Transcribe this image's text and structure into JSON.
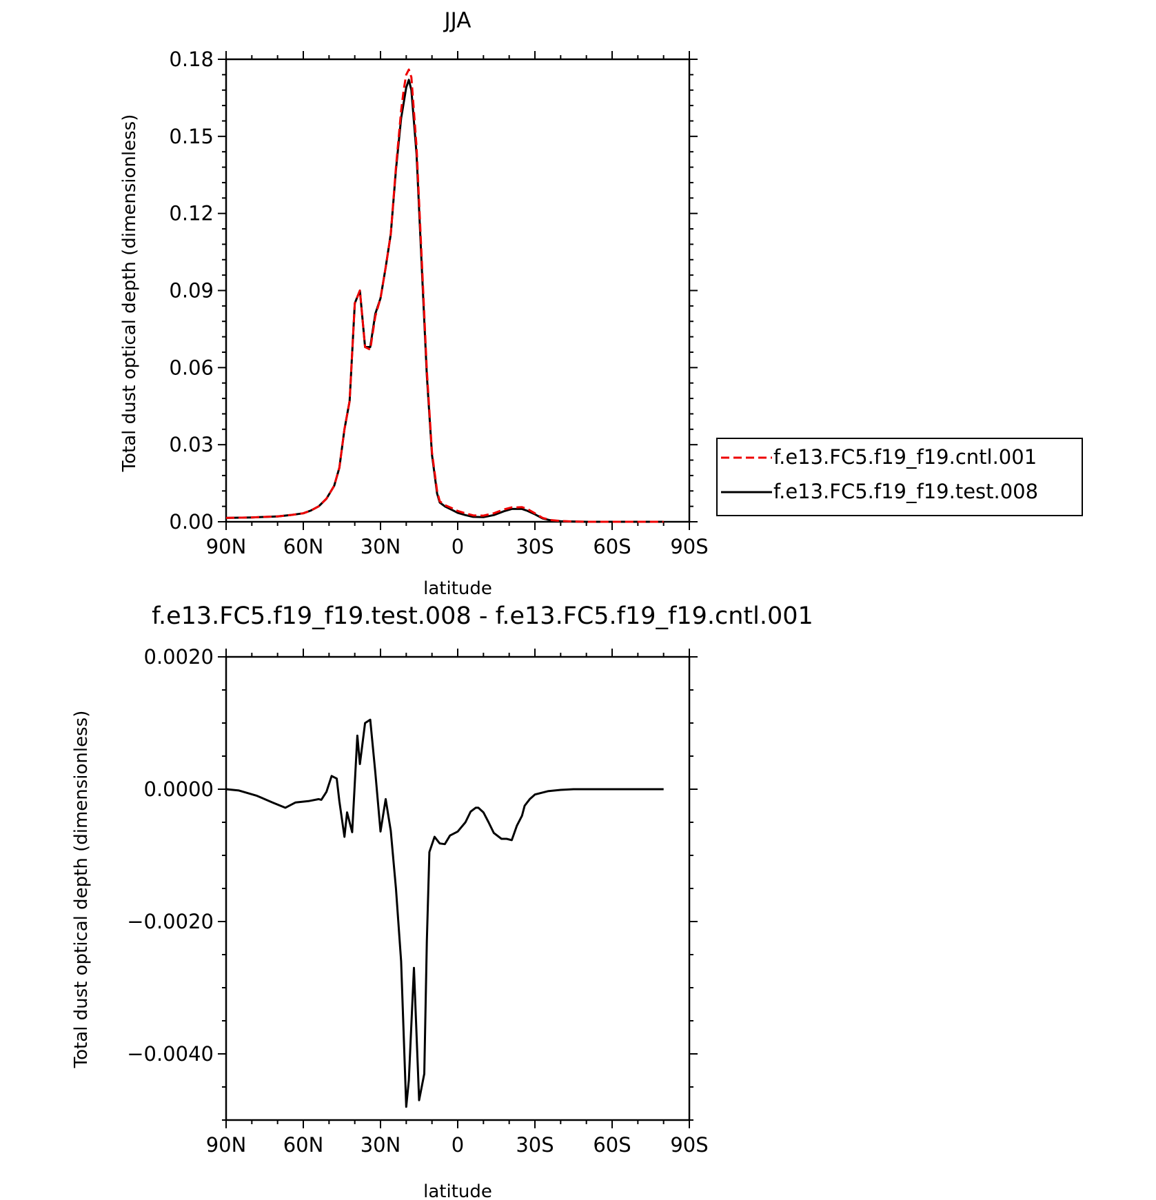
{
  "chart_data": [
    {
      "type": "line",
      "title": "JJA",
      "xlabel": "latitude",
      "ylabel": "Total dust optical depth (dimensionless)",
      "xlim": [
        90,
        -90
      ],
      "ylim": [
        0.0,
        0.18
      ],
      "x_ticks": [
        90,
        60,
        30,
        0,
        -30,
        -60,
        -90
      ],
      "x_tick_labels": [
        "90N",
        "60N",
        "30N",
        "0",
        "30S",
        "60S",
        "90S"
      ],
      "y_ticks": [
        0.0,
        0.03,
        0.06,
        0.09,
        0.12,
        0.15,
        0.18
      ],
      "y_tick_labels": [
        "0.00",
        "0.03",
        "0.06",
        "0.09",
        "0.12",
        "0.15",
        "0.18"
      ],
      "legend_position": "right",
      "series": [
        {
          "name": "f.e13.FC5.f19_f19.cntl.001",
          "color": "#ee0000",
          "dash": "dashed",
          "x": [
            90,
            80,
            70,
            65,
            60,
            57,
            54,
            51,
            48,
            46,
            44,
            42,
            40,
            38,
            36,
            34,
            32,
            30,
            28,
            26,
            24,
            22,
            21,
            20,
            19,
            18,
            16,
            14,
            12,
            10,
            8,
            7,
            5,
            2,
            0,
            -3,
            -6,
            -10,
            -14,
            -18,
            -21,
            -23,
            -25,
            -27,
            -30,
            -33,
            -36,
            -40,
            -45,
            -50,
            -60,
            -70,
            -80
          ],
          "values": [
            0.0015,
            0.0017,
            0.0021,
            0.0026,
            0.0033,
            0.0044,
            0.006,
            0.009,
            0.014,
            0.021,
            0.036,
            0.047,
            0.085,
            0.09,
            0.068,
            0.067,
            0.08,
            0.087,
            0.099,
            0.112,
            0.138,
            0.16,
            0.168,
            0.174,
            0.176,
            0.173,
            0.146,
            0.103,
            0.059,
            0.027,
            0.012,
            0.008,
            0.0065,
            0.0052,
            0.0042,
            0.0033,
            0.0025,
            0.0024,
            0.0033,
            0.0048,
            0.0056,
            0.0056,
            0.0057,
            0.005,
            0.0033,
            0.0015,
            0.0007,
            0.0003,
            0.0001,
            0.0,
            0.0,
            0.0,
            0.0
          ]
        },
        {
          "name": "f.e13.FC5.f19_f19.test.008",
          "color": "#000000",
          "dash": "solid",
          "x": [
            90,
            80,
            70,
            65,
            60,
            57,
            54,
            51,
            48,
            46,
            44,
            42,
            40,
            38,
            36,
            34,
            32,
            30,
            28,
            26,
            24,
            22,
            21,
            20,
            19,
            18,
            16,
            14,
            12,
            10,
            8,
            7,
            5,
            2,
            0,
            -3,
            -6,
            -10,
            -14,
            -18,
            -21,
            -23,
            -25,
            -27,
            -30,
            -33,
            -36,
            -40,
            -45,
            -50,
            -60,
            -70,
            -80
          ],
          "values": [
            0.0015,
            0.0017,
            0.0021,
            0.0026,
            0.0033,
            0.0044,
            0.006,
            0.009,
            0.014,
            0.021,
            0.036,
            0.047,
            0.085,
            0.09,
            0.068,
            0.068,
            0.081,
            0.087,
            0.099,
            0.112,
            0.137,
            0.157,
            0.163,
            0.169,
            0.172,
            0.168,
            0.143,
            0.1,
            0.057,
            0.026,
            0.011,
            0.0075,
            0.006,
            0.0045,
            0.0035,
            0.0026,
            0.0019,
            0.0018,
            0.0026,
            0.0041,
            0.005,
            0.005,
            0.005,
            0.0043,
            0.0029,
            0.0013,
            0.0006,
            0.0002,
            0.0001,
            0.0,
            0.0,
            0.0,
            0.0
          ]
        }
      ]
    },
    {
      "type": "line",
      "title": "f.e13.FC5.f19_f19.test.008 - f.e13.FC5.f19_f19.cntl.001",
      "xlabel": "latitude",
      "ylabel": "Total dust optical depth (dimensionless)",
      "xlim": [
        90,
        -90
      ],
      "ylim": [
        -0.005,
        0.002
      ],
      "x_ticks": [
        90,
        60,
        30,
        0,
        -30,
        -60,
        -90
      ],
      "x_tick_labels": [
        "90N",
        "60N",
        "30N",
        "0",
        "30S",
        "60S",
        "90S"
      ],
      "y_ticks": [
        0.002,
        0.0,
        -0.002,
        -0.004
      ],
      "y_tick_labels": [
        "0.0020",
        "0.0000",
        "−0.0020",
        "−0.0040"
      ],
      "series": [
        {
          "color": "#000000",
          "dash": "solid",
          "x": [
            90,
            85,
            78,
            72,
            67,
            63,
            58,
            54,
            53,
            51,
            49,
            47,
            46,
            44,
            43,
            41,
            39,
            38,
            36,
            34,
            32,
            30,
            28,
            26,
            24,
            22,
            20,
            19,
            17,
            15,
            13,
            12,
            11,
            9,
            7,
            5,
            3,
            2,
            0,
            -3,
            -5,
            -7,
            -8,
            -10,
            -12,
            -14,
            -17,
            -19,
            -21,
            -23,
            -25,
            -26,
            -28,
            -30,
            -35,
            -40,
            -45,
            -50,
            -60,
            -70,
            -80
          ],
          "values": [
            0.0,
            -2e-05,
            -0.0001,
            -0.0002,
            -0.00028,
            -0.0002,
            -0.00018,
            -0.00015,
            -0.00016,
            -4e-05,
            0.0002,
            0.00016,
            -0.00018,
            -0.00072,
            -0.00035,
            -0.00065,
            0.00081,
            0.00038,
            0.001,
            0.00105,
            0.00025,
            -0.00064,
            -0.00015,
            -0.00063,
            -0.0015,
            -0.0026,
            -0.0048,
            -0.0044,
            -0.0027,
            -0.0047,
            -0.0043,
            -0.0023,
            -0.00095,
            -0.00072,
            -0.00082,
            -0.00083,
            -0.0007,
            -0.00068,
            -0.00064,
            -0.0005,
            -0.00034,
            -0.00028,
            -0.00028,
            -0.00035,
            -0.0005,
            -0.00066,
            -0.00075,
            -0.00075,
            -0.00077,
            -0.00055,
            -0.0004,
            -0.00025,
            -0.00015,
            -8e-05,
            -3e-05,
            -1e-05,
            0.0,
            0.0,
            0.0,
            0.0,
            0.0
          ]
        }
      ]
    }
  ]
}
